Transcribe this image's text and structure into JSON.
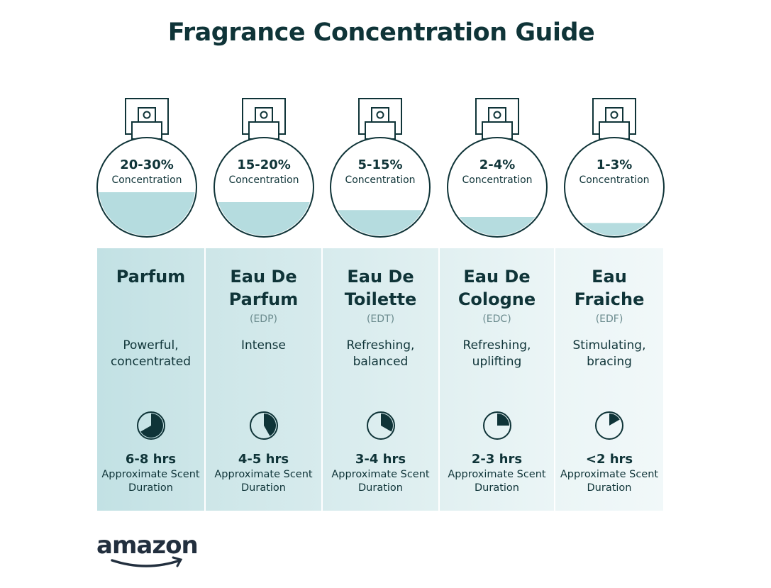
{
  "title": "Fragrance Concentration Guide",
  "colors": {
    "text": "#0f3438",
    "liquid": "#b5dcdf",
    "col_start": "#bfe0e3",
    "col_end": "#f1f8f9"
  },
  "types": [
    {
      "concentration": "20-30%",
      "concentration_label": "Concentration",
      "fill_level": 0.45,
      "name": "Parfum",
      "abbr": "",
      "description": "Powerful, concentrated",
      "duration": "6-8 hrs",
      "duration_label": "Approximate Scent Duration",
      "clock_fraction": 0.667,
      "bg": "#c2e1e4"
    },
    {
      "concentration": "15-20%",
      "concentration_label": "Concentration",
      "fill_level": 0.35,
      "name": "Eau De Parfum",
      "abbr": "(EDP)",
      "description": "Intense",
      "duration": "4-5 hrs",
      "duration_label": "Approximate Scent Duration",
      "clock_fraction": 0.417,
      "bg": "#cde6e8"
    },
    {
      "concentration": "5-15%",
      "concentration_label": "Concentration",
      "fill_level": 0.27,
      "name": "Eau De Toilette",
      "abbr": "(EDT)",
      "description": "Refreshing, balanced",
      "duration": "3-4 hrs",
      "duration_label": "Approximate Scent Duration",
      "clock_fraction": 0.333,
      "bg": "#d7ebed"
    },
    {
      "concentration": "2-4%",
      "concentration_label": "Concentration",
      "fill_level": 0.2,
      "name": "Eau De Cologne",
      "abbr": "(EDC)",
      "description": "Refreshing, uplifting",
      "duration": "2-3 hrs",
      "duration_label": "Approximate Scent Duration",
      "clock_fraction": 0.25,
      "bg": "#e1f0f1"
    },
    {
      "concentration": "1-3%",
      "concentration_label": "Concentration",
      "fill_level": 0.14,
      "name": "Eau Fraiche",
      "abbr": "(EDF)",
      "description": "Stimulating, bracing",
      "duration": "<2 hrs",
      "duration_label": "Approximate Scent Duration",
      "clock_fraction": 0.167,
      "bg": "#ebf5f6"
    }
  ],
  "logo": "amazon"
}
